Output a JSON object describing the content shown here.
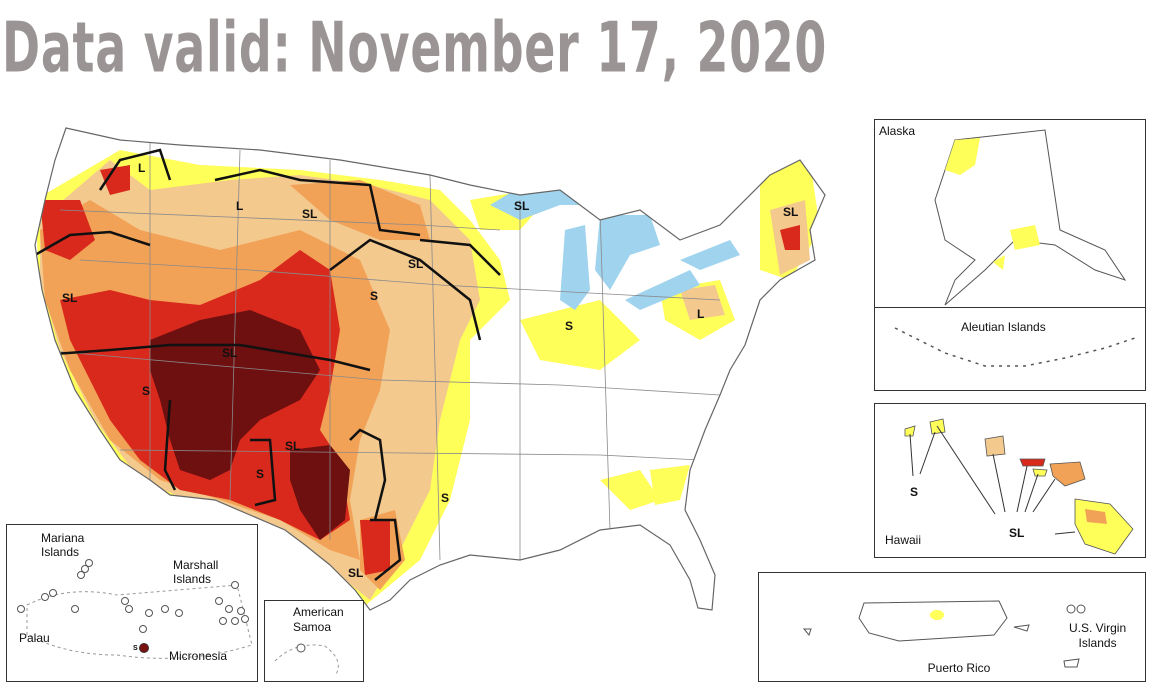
{
  "title": "Data valid: November 17, 2020",
  "insets": {
    "alaska": "Alaska",
    "aleutian": "Aleutian Islands",
    "hawaii": "Hawaii",
    "puerto_rico": "Puerto Rico",
    "virgin_islands": "U.S. Virgin\nIslands",
    "mariana": "Mariana\nIslands",
    "marshall": "Marshall\nIslands",
    "palau": "Palau",
    "micronesia": "Micronesia",
    "american_samoa": "American\nSamoa"
  },
  "impact_labels": {
    "l_nw": "L",
    "l_id": "L",
    "sl_mt": "SL",
    "sl_or": "SL",
    "sl_ut": "SL",
    "s_nv": "S",
    "sl_nm": "SL",
    "s_az": "S",
    "s_sd": "S",
    "sl_mn": "SL",
    "sl_wi": "SL",
    "s_il": "S",
    "l_pa": "L",
    "sl_me": "SL",
    "s_tx": "S",
    "sl_tx": "SL",
    "hawaii_s": "S",
    "hawaii_sl": "SL",
    "micronesia_s": "S"
  },
  "colors": {
    "D0": "#ffff00",
    "D1": "#fcd37f",
    "D2": "#ffaa00",
    "D3": "#e60000",
    "D4": "#730000",
    "abnormally_dry": "#fff64f",
    "moderate": "#f6c98b",
    "severe": "#f0a050",
    "extreme": "#dd2b1e",
    "exceptional": "#6e0f10",
    "lakes": "#9fd3ee",
    "title": "#9a9494"
  }
}
